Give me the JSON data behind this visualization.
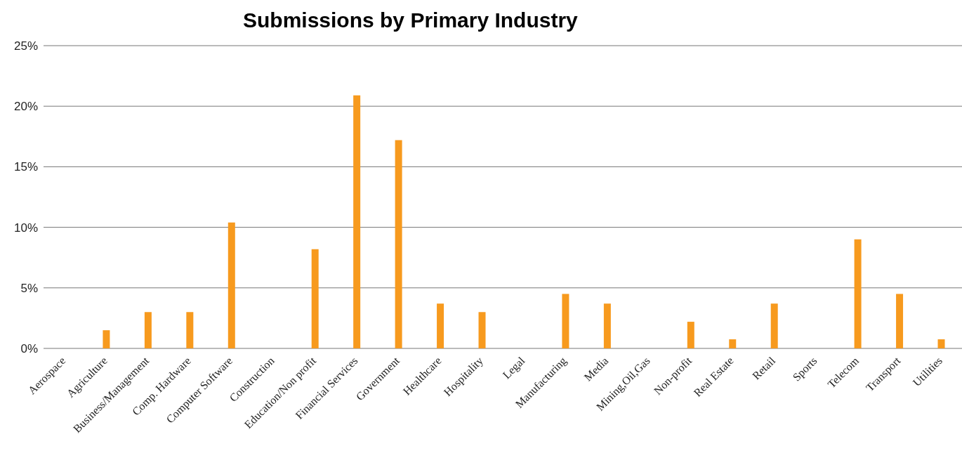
{
  "chart_data": {
    "type": "bar",
    "title": "Submissions by Primary Industry",
    "categories": [
      "Aerospace",
      "Agriculture",
      "Business/Management",
      "Comp. Hardware",
      "Computer Software",
      "Construction",
      "Education/Non profit",
      "Financial Services",
      "Government",
      "Healthcare",
      "Hospitality",
      "Legal",
      "Manufacturing",
      "Media",
      "Mining,Oil,Gas",
      "Non-profit",
      "Real Estate",
      "Retail",
      "Sports",
      "Telecom",
      "Transport",
      "Utilities"
    ],
    "values": [
      0,
      1.5,
      3,
      3,
      10.4,
      0,
      8.2,
      20.9,
      17.2,
      3.7,
      3,
      0,
      4.5,
      3.7,
      0,
      2.2,
      0.75,
      3.7,
      0,
      9,
      4.5,
      0.75
    ],
    "color": "#f79a1e",
    "ylim": [
      0,
      25
    ],
    "yticks": [
      {
        "value": 0,
        "label": "0%"
      },
      {
        "value": 5,
        "label": "5%"
      },
      {
        "value": 10,
        "label": "10%"
      },
      {
        "value": 15,
        "label": "15%"
      },
      {
        "value": 20,
        "label": "20%"
      },
      {
        "value": 25,
        "label": "25%"
      }
    ],
    "grid": "y"
  }
}
